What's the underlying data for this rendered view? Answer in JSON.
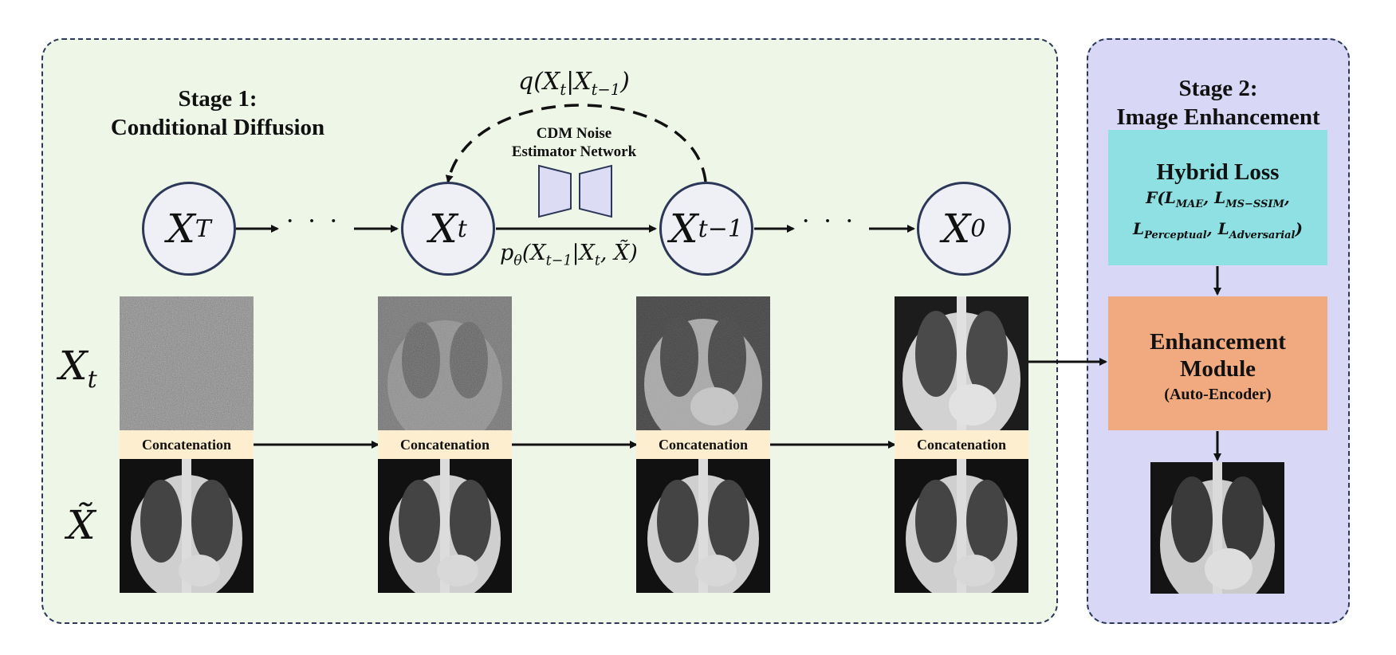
{
  "stage1": {
    "title_line1": "Stage 1:",
    "title_line2": "Conditional Diffusion"
  },
  "stage2": {
    "title_line1": "Stage 2:",
    "title_line2": "Image Enhancement"
  },
  "nodes": [
    {
      "base": "X",
      "sub": "T"
    },
    {
      "base": "X",
      "sub": "t"
    },
    {
      "base": "X",
      "sub": "t−1"
    },
    {
      "base": "X",
      "sub": "0"
    }
  ],
  "dots": "···",
  "forward_process": {
    "base": "q(X",
    "sub1": "t",
    "mid": "|X",
    "sub2": "t−1",
    "end": ")"
  },
  "reverse_process": {
    "base": "p",
    "sub_theta": "θ",
    "open": "(X",
    "sub1": "t−1",
    "mid": "|X",
    "sub2": "t",
    "end": ", X̃)"
  },
  "network": {
    "line1": "CDM Noise",
    "line2": "Estimator Network"
  },
  "row_labels": {
    "noisy": {
      "base": "X",
      "sub": "t"
    },
    "condition": "X̃"
  },
  "concat_label": "Concatenation",
  "hybrid_loss": {
    "title": "Hybrid Loss",
    "line1_prefix": "F(L",
    "line1_sub1": "MAE",
    "line1_mid": ", L",
    "line1_sub2": "MS−SSIM",
    "line1_end": ",",
    "line2_prefix": "L",
    "line2_sub1": "Perceptual",
    "line2_mid": ", L",
    "line2_sub2": "Adversarial",
    "line2_end": ")"
  },
  "enhancement": {
    "line1": "Enhancement",
    "line2": "Module",
    "line3": "(Auto-Encoder)"
  },
  "colors": {
    "stage1_bg": "#eef6e8",
    "stage2_bg": "#d8d8f6",
    "hybrid_loss_bg": "#8ee0e2",
    "enhancement_bg": "#f1aa7f",
    "concat_bg": "#fdeed0",
    "network_fill": "#dcdcf4"
  }
}
